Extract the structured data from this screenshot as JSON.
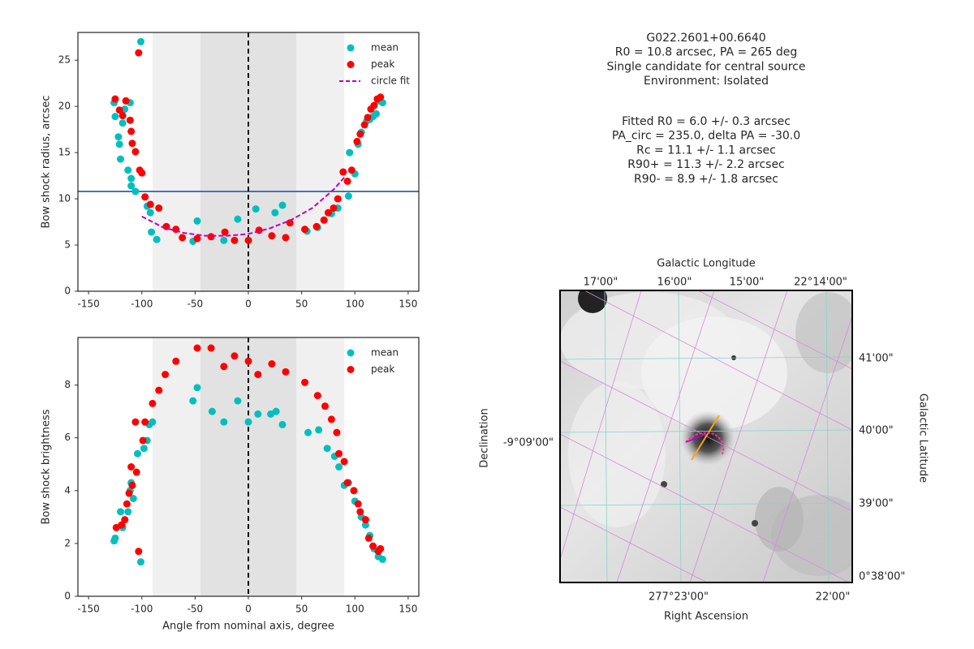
{
  "chart_data": [
    {
      "type": "scatter",
      "ylabel": "Bow shock radius, arcsec",
      "xlim": [
        -160,
        160
      ],
      "ylim": [
        0,
        28
      ],
      "xticks": [
        -150,
        -100,
        -50,
        0,
        50,
        100,
        150
      ],
      "yticks": [
        0,
        5,
        10,
        15,
        20,
        25
      ],
      "spans": [
        {
          "from": -90,
          "to": 90,
          "color": "#f0f0f0"
        },
        {
          "from": -45,
          "to": 45,
          "color": "#e2e2e2"
        }
      ],
      "hline": {
        "value": 10.8,
        "color": "#4c72b0"
      },
      "vline": {
        "value": 0,
        "color": "#000000"
      },
      "legend": "upper right",
      "series": [
        {
          "name": "mean",
          "color": "#00bfbf",
          "x": [
            -126,
            -125,
            -122,
            -121,
            -120,
            -118,
            -116,
            -111,
            -113,
            -110,
            -110,
            -106,
            -101,
            -97,
            -95,
            -92,
            -91,
            -86,
            -52,
            -48,
            -23,
            -10,
            7,
            25,
            32,
            55,
            65,
            71,
            78,
            84,
            89,
            94,
            95,
            100,
            103,
            106,
            111,
            114,
            117,
            120,
            122,
            126
          ],
          "values": [
            20.4,
            18.9,
            16.7,
            15.9,
            14.3,
            18.2,
            19.7,
            20.4,
            13.1,
            12.2,
            11.4,
            10.8,
            27.0,
            10.2,
            9.2,
            8.5,
            6.4,
            5.6,
            5.4,
            7.6,
            5.5,
            7.8,
            8.9,
            8.5,
            9.3,
            6.5,
            6.9,
            7.7,
            8.4,
            9.0,
            12.9,
            10.3,
            15.0,
            12.7,
            15.9,
            17.2,
            18.4,
            18.6,
            18.9,
            19.2,
            20.6,
            20.4
          ]
        },
        {
          "name": "peak",
          "color": "#ff0000",
          "x": [
            -125,
            -121,
            -118,
            -115,
            -111,
            -110,
            -109,
            -106,
            -103,
            -102,
            -100,
            -97,
            -92,
            -84,
            -77,
            -68,
            -62,
            -48,
            -35,
            -22,
            -13,
            0,
            10,
            22,
            35,
            39,
            53,
            64,
            71,
            75,
            80,
            84,
            89,
            93,
            97,
            102,
            105,
            109,
            112,
            115,
            118,
            121,
            124
          ],
          "values": [
            20.8,
            19.6,
            19.0,
            20.6,
            18.5,
            17.3,
            16.0,
            15.1,
            25.8,
            13.1,
            12.8,
            10.2,
            9.4,
            9.0,
            7.0,
            6.7,
            5.8,
            5.7,
            5.9,
            6.4,
            5.5,
            5.5,
            6.6,
            6.0,
            5.8,
            7.4,
            6.7,
            7.0,
            7.7,
            8.5,
            9.0,
            10.0,
            12.9,
            11.9,
            13.1,
            16.2,
            17.0,
            18.0,
            18.8,
            19.7,
            20.1,
            20.8,
            21.0
          ]
        },
        {
          "name": "circle fit",
          "color": "#bf00bf",
          "style": "dashed",
          "x": [
            -100,
            -80,
            -60,
            -40,
            -20,
            0,
            20,
            40,
            60,
            80,
            90
          ],
          "values": [
            8.1,
            6.9,
            6.3,
            6.0,
            6.0,
            6.2,
            6.8,
            7.7,
            9.0,
            11.0,
            12.3
          ]
        }
      ]
    },
    {
      "type": "scatter",
      "ylabel": "Bow shock brightness",
      "xlabel": "Angle from nominal axis, degree",
      "xlim": [
        -160,
        160
      ],
      "ylim": [
        0,
        9.8
      ],
      "xticks": [
        -150,
        -100,
        -50,
        0,
        50,
        100,
        150
      ],
      "yticks": [
        0,
        2,
        4,
        6,
        8
      ],
      "spans": [
        {
          "from": -90,
          "to": 90,
          "color": "#f0f0f0"
        },
        {
          "from": -45,
          "to": 45,
          "color": "#e2e2e2"
        }
      ],
      "vline": {
        "value": 0,
        "color": "#000000"
      },
      "legend": "upper right",
      "series": [
        {
          "name": "mean",
          "color": "#00bfbf",
          "x": [
            -126,
            -125,
            -120,
            -118,
            -113,
            -111,
            -110,
            -108,
            -104,
            -101,
            -98,
            -95,
            -93,
            -90,
            -52,
            -48,
            -34,
            -23,
            -10,
            0,
            9,
            21,
            26,
            32,
            56,
            66,
            74,
            81,
            85,
            90,
            94,
            100,
            106,
            110,
            114,
            118,
            122,
            126
          ],
          "values": [
            2.1,
            2.2,
            3.2,
            2.6,
            3.2,
            4.0,
            4.3,
            3.7,
            5.4,
            1.3,
            5.6,
            5.9,
            6.5,
            6.6,
            7.4,
            7.9,
            7.0,
            6.6,
            7.4,
            6.6,
            6.9,
            6.9,
            7.0,
            6.5,
            6.2,
            6.3,
            5.6,
            5.3,
            4.9,
            4.2,
            4.3,
            3.6,
            3.0,
            2.7,
            2.3,
            1.8,
            1.5,
            1.4
          ]
        },
        {
          "name": "peak",
          "color": "#ff0000",
          "x": [
            -124,
            -119,
            -116,
            -114,
            -112,
            -110,
            -109,
            -106,
            -105,
            -103,
            -99,
            -97,
            -90,
            -84,
            -78,
            -68,
            -48,
            -35,
            -23,
            -13,
            0,
            9,
            22,
            35,
            53,
            65,
            72,
            78,
            83,
            85,
            90,
            93,
            99,
            103,
            105,
            110,
            113,
            117,
            122,
            124
          ],
          "values": [
            2.6,
            2.7,
            2.9,
            3.5,
            3.9,
            4.9,
            4.2,
            6.6,
            4.7,
            1.7,
            5.9,
            6.6,
            7.3,
            7.8,
            8.4,
            8.9,
            9.4,
            9.4,
            8.7,
            9.1,
            8.9,
            8.4,
            8.8,
            8.5,
            8.1,
            7.6,
            7.2,
            6.7,
            6.2,
            5.4,
            5.1,
            4.3,
            4.0,
            3.5,
            3.2,
            2.9,
            2.2,
            1.9,
            1.7,
            1.8
          ]
        }
      ]
    }
  ],
  "info": {
    "source_lines": [
      "G022.2601+00.6640",
      "R0 = 10.8 arcsec, PA = 265 deg",
      "Single candidate for central source",
      "Environment: Isolated"
    ],
    "fit_lines": [
      "Fitted R0 = 6.0 +/- 0.3 arcsec",
      "PA_circ = 235.0, delta PA = -30.0",
      "Rc = 11.1 +/- 1.1 arcsec",
      "R90+ = 11.3 +/- 2.2 arcsec",
      "R90- = 8.9 +/- 1.8 arcsec"
    ]
  },
  "image_panel": {
    "top_label": "Galactic Longitude",
    "top_ticks": [
      "17'00\"",
      "16'00\"",
      "15'00\"",
      "22°14'00\""
    ],
    "right_label": "Galactic Latitude",
    "right_ticks": [
      "41'00\"",
      "40'00\"",
      "39'00\"",
      "0°38'00\""
    ],
    "left_label": "Declination",
    "left_ticks": [
      "-9°09'00\""
    ],
    "bottom_label": "Right Ascension",
    "bottom_ticks": [
      "277°23'00\"",
      "22'00\""
    ]
  }
}
